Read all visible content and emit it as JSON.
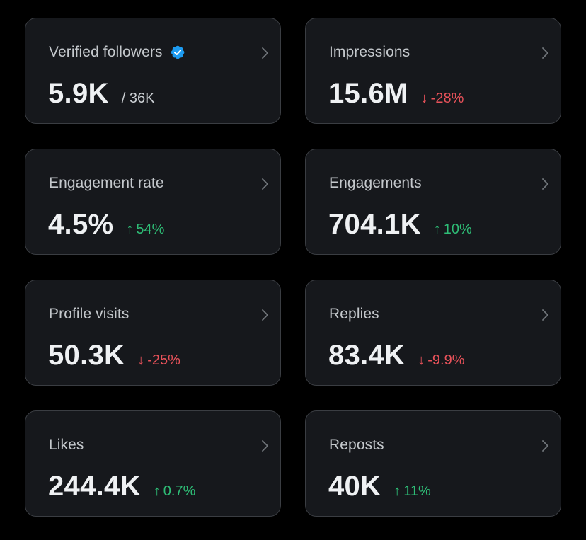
{
  "cards": [
    {
      "label": "Verified followers",
      "value": "5.9K",
      "total": "/ 36K",
      "change": "",
      "direction": "",
      "verified": true
    },
    {
      "label": "Impressions",
      "value": "15.6M",
      "change": "-28%",
      "direction": "down"
    },
    {
      "label": "Engagement rate",
      "value": "4.5%",
      "change": "54%",
      "direction": "up"
    },
    {
      "label": "Engagements",
      "value": "704.1K",
      "change": "10%",
      "direction": "up"
    },
    {
      "label": "Profile visits",
      "value": "50.3K",
      "change": "-25%",
      "direction": "down"
    },
    {
      "label": "Replies",
      "value": "83.4K",
      "change": "-9.9%",
      "direction": "down"
    },
    {
      "label": "Likes",
      "value": "244.4K",
      "change": "0.7%",
      "direction": "up"
    },
    {
      "label": "Reposts",
      "value": "40K",
      "change": "11%",
      "direction": "up"
    }
  ],
  "icons": {
    "verified": "verified-badge-icon",
    "chevron": "chevron-right-icon",
    "up": "arrow-up-icon",
    "down": "arrow-down-icon"
  },
  "colors": {
    "card_bg": "#16181c",
    "card_border": "#3a3d42",
    "up": "#2ebd76",
    "down": "#e8525a",
    "verified": "#1d9bf0"
  }
}
